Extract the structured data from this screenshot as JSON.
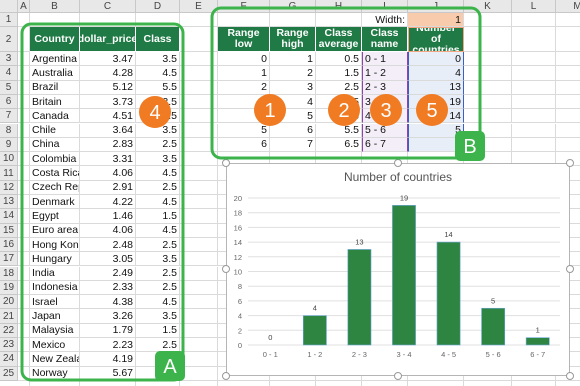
{
  "column_headers": [
    "A",
    "B",
    "C",
    "D",
    "E",
    "F",
    "G",
    "H",
    "I",
    "J",
    "K",
    "L",
    "M"
  ],
  "row_numbers": [
    1,
    2,
    3,
    4,
    5,
    6,
    7,
    8,
    9,
    10,
    11,
    12,
    13,
    14,
    15,
    16,
    17,
    18,
    19,
    20,
    21,
    22,
    23,
    24,
    25
  ],
  "width_label": "Width:",
  "width_value": 1,
  "countries_table": {
    "header": [
      "Country",
      "dollar_price",
      "Class"
    ],
    "rows": [
      [
        "Argentina",
        3.47,
        3.5
      ],
      [
        "Australia",
        4.28,
        4.5
      ],
      [
        "Brazil",
        5.12,
        5.5
      ],
      [
        "Britain",
        3.73,
        3.5
      ],
      [
        "Canada",
        4.51,
        4.5
      ],
      [
        "Chile",
        3.64,
        3.5
      ],
      [
        "China",
        2.83,
        2.5
      ],
      [
        "Colombia",
        3.31,
        3.5
      ],
      [
        "Costa Rica",
        4.06,
        4.5
      ],
      [
        "Czech Rep",
        2.91,
        2.5
      ],
      [
        "Denmark",
        4.22,
        4.5
      ],
      [
        "Egypt",
        1.46,
        1.5
      ],
      [
        "Euro area",
        4.06,
        4.5
      ],
      [
        "Hong Kong",
        2.48,
        2.5
      ],
      [
        "Hungary",
        3.05,
        3.5
      ],
      [
        "India",
        2.49,
        2.5
      ],
      [
        "Indonesia",
        2.33,
        2.5
      ],
      [
        "Israel",
        4.38,
        4.5
      ],
      [
        "Japan",
        3.26,
        3.5
      ],
      [
        "Malaysia",
        1.79,
        1.5
      ],
      [
        "Mexico",
        2.23,
        2.5
      ],
      [
        "New Zealand",
        4.19,
        4.5
      ],
      [
        "Norway",
        5.67,
        5.5
      ]
    ]
  },
  "range_table": {
    "header": [
      "Range low",
      "Range high",
      "Class average",
      "Class name",
      "Number of countries"
    ],
    "rows": [
      [
        0,
        1,
        0.5,
        "0 - 1",
        0
      ],
      [
        1,
        2,
        1.5,
        "1 - 2",
        4
      ],
      [
        2,
        3,
        2.5,
        "2 - 3",
        13
      ],
      [
        3,
        4,
        3.5,
        "3 - 4",
        19
      ],
      [
        4,
        5,
        4.5,
        "4 - 5",
        14
      ],
      [
        5,
        6,
        5.5,
        "5 - 6",
        5
      ],
      [
        6,
        7,
        6.5,
        "6 - 7",
        1
      ]
    ]
  },
  "callouts": [
    "1",
    "2",
    "3",
    "4",
    "5",
    "A",
    "B"
  ],
  "chart_data": {
    "type": "bar",
    "title": "Number of countries",
    "categories": [
      "0 - 1",
      "1 - 2",
      "2 - 3",
      "3 - 4",
      "4 - 5",
      "5 - 6",
      "6 - 7"
    ],
    "values": [
      0,
      4,
      13,
      19,
      14,
      5,
      1
    ],
    "color": "#2e8542",
    "ylim": [
      0,
      20
    ],
    "yticks": [
      0,
      2,
      4,
      6,
      8,
      10,
      12,
      14,
      16,
      18,
      20
    ],
    "grid": true
  }
}
